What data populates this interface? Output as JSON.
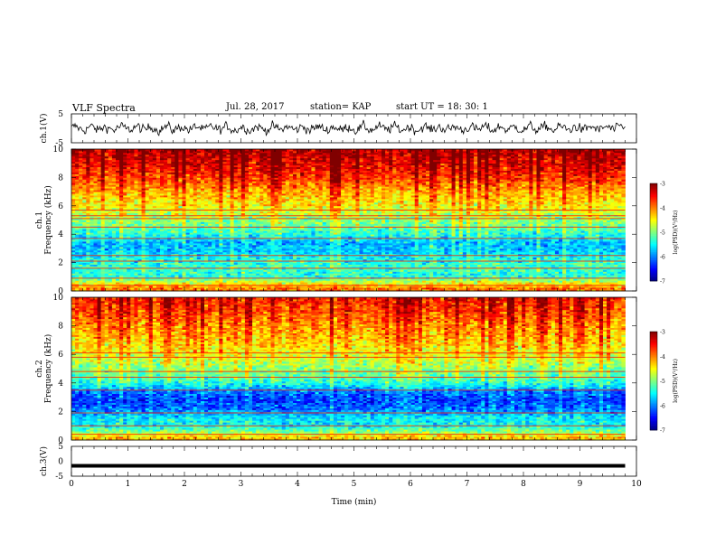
{
  "header": {
    "title": "VLF Spectra",
    "date": "Jul. 28, 2017",
    "station": "station= KAP",
    "start": "start UT =  18: 30: 1"
  },
  "chart_data": [
    {
      "type": "line",
      "panel": "ch1-waveform",
      "ylabel": "ch.1(V)",
      "ylim": [
        -5,
        5
      ],
      "yticks": [
        "5",
        "-5"
      ],
      "xlim": [
        0,
        10
      ],
      "description_series": "noisy waveform oscillating roughly between -4 and +4 V over 0–9.8 min",
      "color": "#000000"
    },
    {
      "type": "heatmap",
      "panel": "ch1-spectrogram",
      "ylabel": "ch.1\nFrequency (kHz)",
      "ylim": [
        0,
        10
      ],
      "yticks": [
        "0",
        "2",
        "4",
        "6",
        "8",
        "10"
      ],
      "xlim": [
        0,
        9.8
      ],
      "colorbar": {
        "label": "log(PSD)(V²/Hz)",
        "range": [
          -7,
          -3
        ],
        "ticks": [
          "-3",
          "-4",
          "-5",
          "-6",
          "-7"
        ]
      },
      "frequency_profile_log_psd": [
        {
          "f": 0.2,
          "v": -4.0
        },
        {
          "f": 0.6,
          "v": -4.6
        },
        {
          "f": 1.0,
          "v": -5.4
        },
        {
          "f": 1.6,
          "v": -5.3
        },
        {
          "f": 2.2,
          "v": -5.4
        },
        {
          "f": 2.8,
          "v": -5.7
        },
        {
          "f": 3.4,
          "v": -5.8
        },
        {
          "f": 4.0,
          "v": -5.4
        },
        {
          "f": 4.6,
          "v": -5.1
        },
        {
          "f": 5.2,
          "v": -4.9
        },
        {
          "f": 6.0,
          "v": -4.5
        },
        {
          "f": 7.0,
          "v": -4.2
        },
        {
          "f": 8.0,
          "v": -3.7
        },
        {
          "f": 9.0,
          "v": -3.4
        },
        {
          "f": 10.0,
          "v": -3.2
        }
      ],
      "lines_khz": [
        0.4,
        0.9,
        1.6,
        2.1,
        2.5,
        3.7,
        4.5,
        5.1,
        5.3,
        5.7
      ]
    },
    {
      "type": "heatmap",
      "panel": "ch2-spectrogram",
      "ylabel": "ch.2\nFrequency (kHz)",
      "ylim": [
        0,
        10
      ],
      "yticks": [
        "0",
        "2",
        "4",
        "6",
        "8",
        "10"
      ],
      "xlim": [
        0,
        9.8
      ],
      "colorbar": {
        "label": "log(PSD)(V²/Hz)",
        "range": [
          -7,
          -3
        ],
        "ticks": [
          "-3",
          "-4",
          "-5",
          "-6",
          "-7"
        ]
      },
      "frequency_profile_log_psd": [
        {
          "f": 0.2,
          "v": -4.3
        },
        {
          "f": 0.6,
          "v": -5.0
        },
        {
          "f": 1.0,
          "v": -5.5
        },
        {
          "f": 1.6,
          "v": -5.6
        },
        {
          "f": 2.2,
          "v": -6.1
        },
        {
          "f": 2.8,
          "v": -6.3
        },
        {
          "f": 3.4,
          "v": -6.1
        },
        {
          "f": 4.0,
          "v": -5.4
        },
        {
          "f": 4.6,
          "v": -5.1
        },
        {
          "f": 5.2,
          "v": -4.9
        },
        {
          "f": 6.0,
          "v": -4.6
        },
        {
          "f": 7.0,
          "v": -4.3
        },
        {
          "f": 8.0,
          "v": -4.1
        },
        {
          "f": 9.0,
          "v": -3.8
        },
        {
          "f": 10.0,
          "v": -3.6
        }
      ],
      "lines_khz": [
        0.4,
        1.0,
        1.9,
        3.5,
        4.4,
        4.8,
        5.8,
        6.1
      ]
    },
    {
      "type": "line",
      "panel": "ch3-waveform",
      "ylabel": "ch.3(V)",
      "ylim": [
        -5,
        5
      ],
      "yticks": [
        "5",
        "0",
        "-5"
      ],
      "xlim": [
        0,
        10
      ],
      "x": [
        0,
        9.8
      ],
      "values": [
        -1.5,
        -1.5
      ],
      "color": "#000000"
    }
  ],
  "xaxis": {
    "label": "Time (min)",
    "range": [
      0,
      10
    ],
    "ticks": [
      "0",
      "1",
      "2",
      "3",
      "4",
      "5",
      "6",
      "7",
      "8",
      "9",
      "10"
    ]
  }
}
